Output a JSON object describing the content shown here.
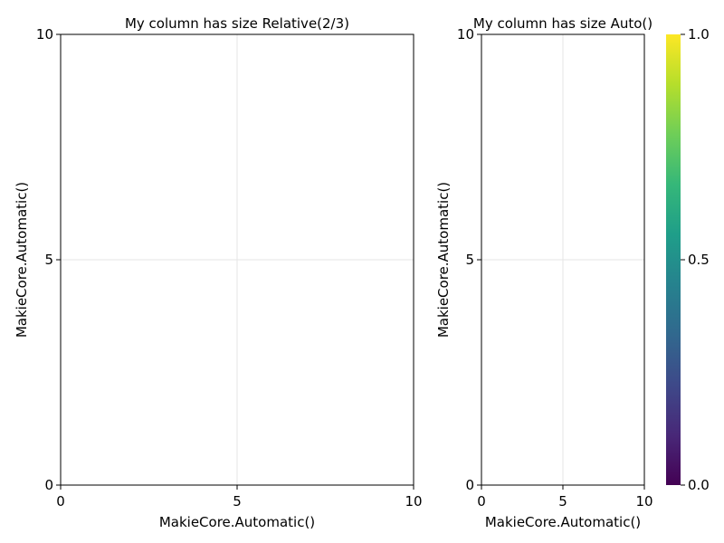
{
  "chart_data": [
    {
      "type": "scatter",
      "title": "My column has size Relative(2/3)",
      "xlabel": "MakieCore.Automatic()",
      "ylabel": "MakieCore.Automatic()",
      "xlim": [
        0,
        10
      ],
      "ylim": [
        0,
        10
      ],
      "xticks": [
        0,
        5,
        10
      ],
      "yticks": [
        0,
        5,
        10
      ],
      "xtick_labels": [
        "0",
        "5",
        "10"
      ],
      "ytick_labels": [
        "0",
        "5",
        "10"
      ],
      "grid": true,
      "series": []
    },
    {
      "type": "scatter",
      "title": "My column has size Auto()",
      "xlabel": "MakieCore.Automatic()",
      "ylabel": "MakieCore.Automatic()",
      "xlim": [
        0,
        10
      ],
      "ylim": [
        0,
        10
      ],
      "xticks": [
        0,
        5,
        10
      ],
      "yticks": [
        0,
        5,
        10
      ],
      "xtick_labels": [
        "0",
        "5",
        "10"
      ],
      "ytick_labels": [
        "0",
        "5",
        "10"
      ],
      "grid": true,
      "series": []
    }
  ],
  "colorbar": {
    "colormap": "viridis",
    "range": [
      0,
      1
    ],
    "ticks": [
      0,
      0.5,
      1
    ],
    "tick_labels": [
      "0.0",
      "0.5",
      "1.0"
    ],
    "colors": [
      "#440154",
      "#482878",
      "#3e4989",
      "#31688e",
      "#26828e",
      "#1f9e89",
      "#35b779",
      "#6ece58",
      "#b5de2b",
      "#fde725"
    ]
  }
}
